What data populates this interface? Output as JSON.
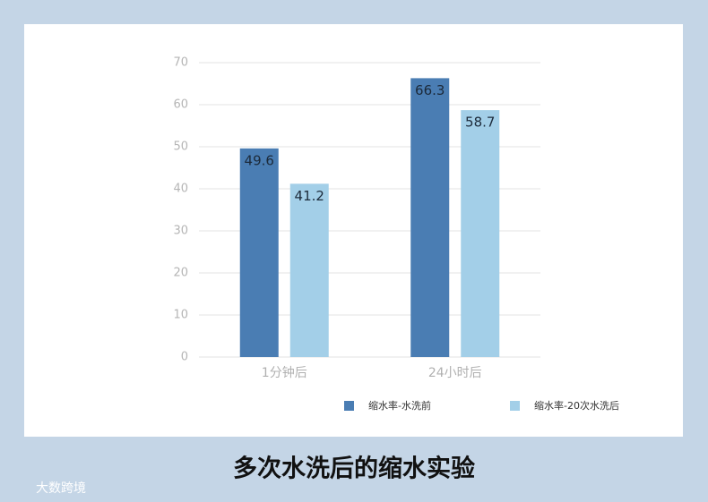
{
  "chart_data": {
    "type": "bar",
    "title": "多次水洗后的缩水实验",
    "categories": [
      "1分钟后",
      "24小时后"
    ],
    "series": [
      {
        "name": "缩水率-水洗前",
        "color": "#4a7db3",
        "values": [
          49.6,
          66.3
        ]
      },
      {
        "name": "缩水率-20次水洗后",
        "color": "#a3cfe8",
        "values": [
          41.2,
          58.7
        ]
      }
    ],
    "ylim": [
      0,
      70
    ],
    "yticks": [
      0,
      10,
      20,
      30,
      40,
      50,
      60,
      70
    ],
    "grid": true
  },
  "watermark": "大数跨境"
}
